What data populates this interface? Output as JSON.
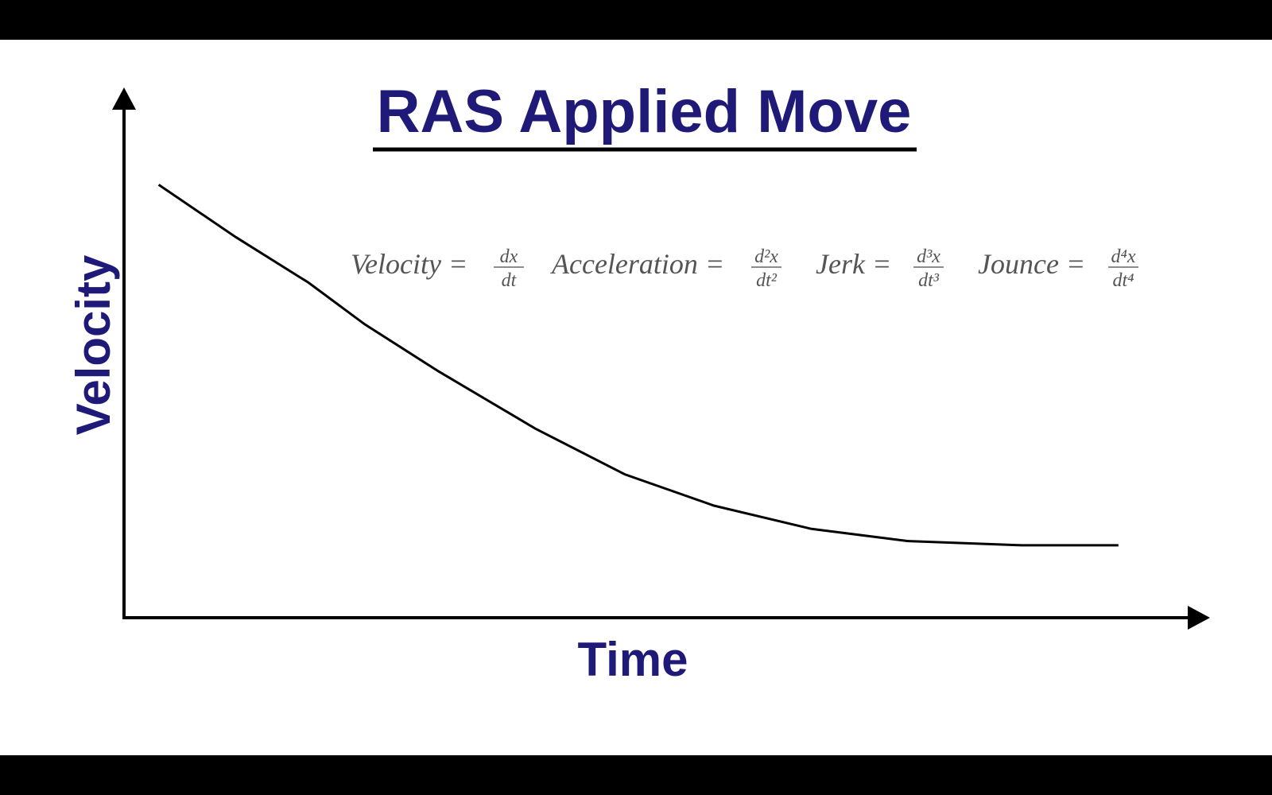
{
  "chart_data": {
    "type": "line",
    "title": "RAS Applied Move",
    "x_label": "Time",
    "y_label": "Velocity",
    "x": [
      3.2,
      10.3,
      17.0,
      22.2,
      29.0,
      37.9,
      46.2,
      54.4,
      63.4,
      72.3,
      82.8,
      91.7
    ],
    "values": [
      81.9,
      72.0,
      63.4,
      55.5,
      46.6,
      35.8,
      27.1,
      21.2,
      16.8,
      14.5,
      13.7,
      13.7
    ],
    "color": "#000000",
    "xlim": [
      0,
      100
    ],
    "ylim": [
      0,
      100
    ],
    "annotations": [
      {
        "lhs": "Velocity =",
        "num": "dx",
        "den": "dt"
      },
      {
        "lhs": "Acceleration =",
        "num": "d²x",
        "den": "dt²"
      },
      {
        "lhs": "Jerk =",
        "num": "d³x",
        "den": "dt³"
      },
      {
        "lhs": "Jounce =",
        "num": "d⁴x",
        "den": "dt⁴"
      }
    ]
  }
}
